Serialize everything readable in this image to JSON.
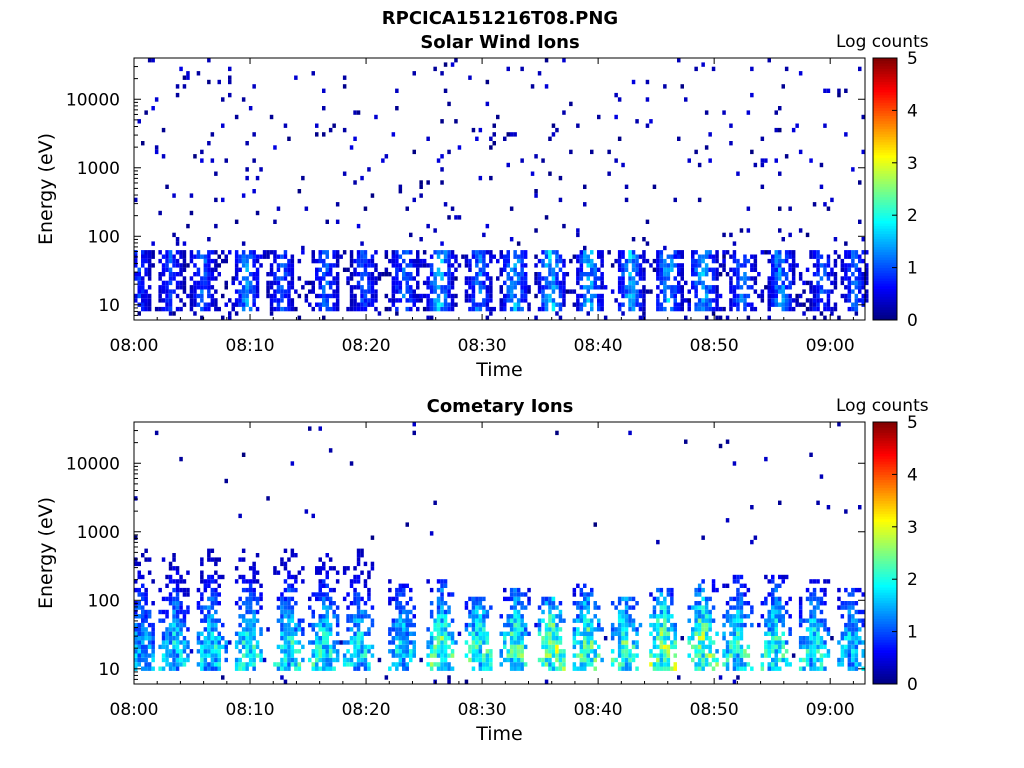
{
  "figure_title": "RPCICA151216T08.PNG",
  "colormap": [
    "#00007f",
    "#0000ff",
    "#007fff",
    "#00ffff",
    "#7fff7f",
    "#ffff00",
    "#ff7f00",
    "#ff0000",
    "#7f0000"
  ],
  "chart_data": [
    {
      "type": "heatmap",
      "title": "Solar Wind Ions",
      "xlabel": "Time",
      "ylabel": "Energy (eV)",
      "colorbar_label": "Log counts",
      "y_scale": "log",
      "xlim": [
        "08:00",
        "09:03"
      ],
      "ylim": [
        6,
        40000
      ],
      "clim": [
        0,
        5
      ],
      "x_ticks": [
        "08:00",
        "08:10",
        "08:20",
        "08:30",
        "08:40",
        "08:50",
        "09:00"
      ],
      "y_ticks": [
        "10",
        "100",
        "1000",
        "10000"
      ],
      "colorbar_ticks": [
        "0",
        "1",
        "2",
        "3",
        "4",
        "5"
      ],
      "grid": false,
      "bursts": [
        {
          "t": 0.3,
          "c": 0.9
        },
        {
          "t": 3.0,
          "c": 1.0
        },
        {
          "t": 5.8,
          "c": 1.2
        },
        {
          "t": 9.6,
          "c": 1.4
        },
        {
          "t": 12.6,
          "c": 1.1
        },
        {
          "t": 16.4,
          "c": 1.2
        },
        {
          "t": 19.7,
          "c": 1.1
        },
        {
          "t": 23.2,
          "c": 1.3
        },
        {
          "t": 26.2,
          "c": 1.7
        },
        {
          "t": 29.6,
          "c": 1.3
        },
        {
          "t": 32.7,
          "c": 1.6
        },
        {
          "t": 35.8,
          "c": 1.8
        },
        {
          "t": 39.1,
          "c": 1.6
        },
        {
          "t": 42.6,
          "c": 1.6
        },
        {
          "t": 45.9,
          "c": 1.6
        },
        {
          "t": 48.9,
          "c": 1.7
        },
        {
          "t": 52.3,
          "c": 1.3
        },
        {
          "t": 55.6,
          "c": 1.5
        },
        {
          "t": 59.2,
          "c": 1.1
        },
        {
          "t": 62.0,
          "c": 1.2
        }
      ]
    },
    {
      "type": "heatmap",
      "title": "Cometary Ions",
      "xlabel": "Time",
      "ylabel": "Energy (eV)",
      "colorbar_label": "Log counts",
      "y_scale": "log",
      "xlim": [
        "08:00",
        "09:03"
      ],
      "ylim": [
        6,
        40000
      ],
      "clim": [
        0,
        5
      ],
      "x_ticks": [
        "08:00",
        "08:10",
        "08:20",
        "08:30",
        "08:40",
        "08:50",
        "09:00"
      ],
      "y_ticks": [
        "10",
        "100",
        "1000",
        "10000"
      ],
      "colorbar_ticks": [
        "0",
        "1",
        "2",
        "3",
        "4",
        "5"
      ],
      "grid": false,
      "bursts": [
        {
          "t": 0.5,
          "c": 1.8,
          "top": 600
        },
        {
          "t": 3.4,
          "c": 2.0,
          "top": 600
        },
        {
          "t": 6.5,
          "c": 2.1,
          "top": 600
        },
        {
          "t": 9.8,
          "c": 2.3,
          "top": 600
        },
        {
          "t": 13.2,
          "c": 2.3,
          "top": 600
        },
        {
          "t": 16.3,
          "c": 2.3,
          "top": 600
        },
        {
          "t": 19.2,
          "c": 2.1,
          "top": 600
        },
        {
          "t": 23.0,
          "c": 2.0,
          "top": 200
        },
        {
          "t": 26.4,
          "c": 2.6,
          "top": 200
        },
        {
          "t": 29.6,
          "c": 2.5,
          "top": 120
        },
        {
          "t": 32.7,
          "c": 2.6,
          "top": 150
        },
        {
          "t": 35.9,
          "c": 3.0,
          "top": 120
        },
        {
          "t": 38.9,
          "c": 2.7,
          "top": 180
        },
        {
          "t": 42.2,
          "c": 2.6,
          "top": 120
        },
        {
          "t": 45.4,
          "c": 3.0,
          "top": 150
        },
        {
          "t": 48.8,
          "c": 3.0,
          "top": 200
        },
        {
          "t": 51.9,
          "c": 2.4,
          "top": 250
        },
        {
          "t": 55.2,
          "c": 2.4,
          "top": 250
        },
        {
          "t": 58.4,
          "c": 2.2,
          "top": 200
        },
        {
          "t": 61.6,
          "c": 2.0,
          "top": 150
        }
      ]
    }
  ]
}
